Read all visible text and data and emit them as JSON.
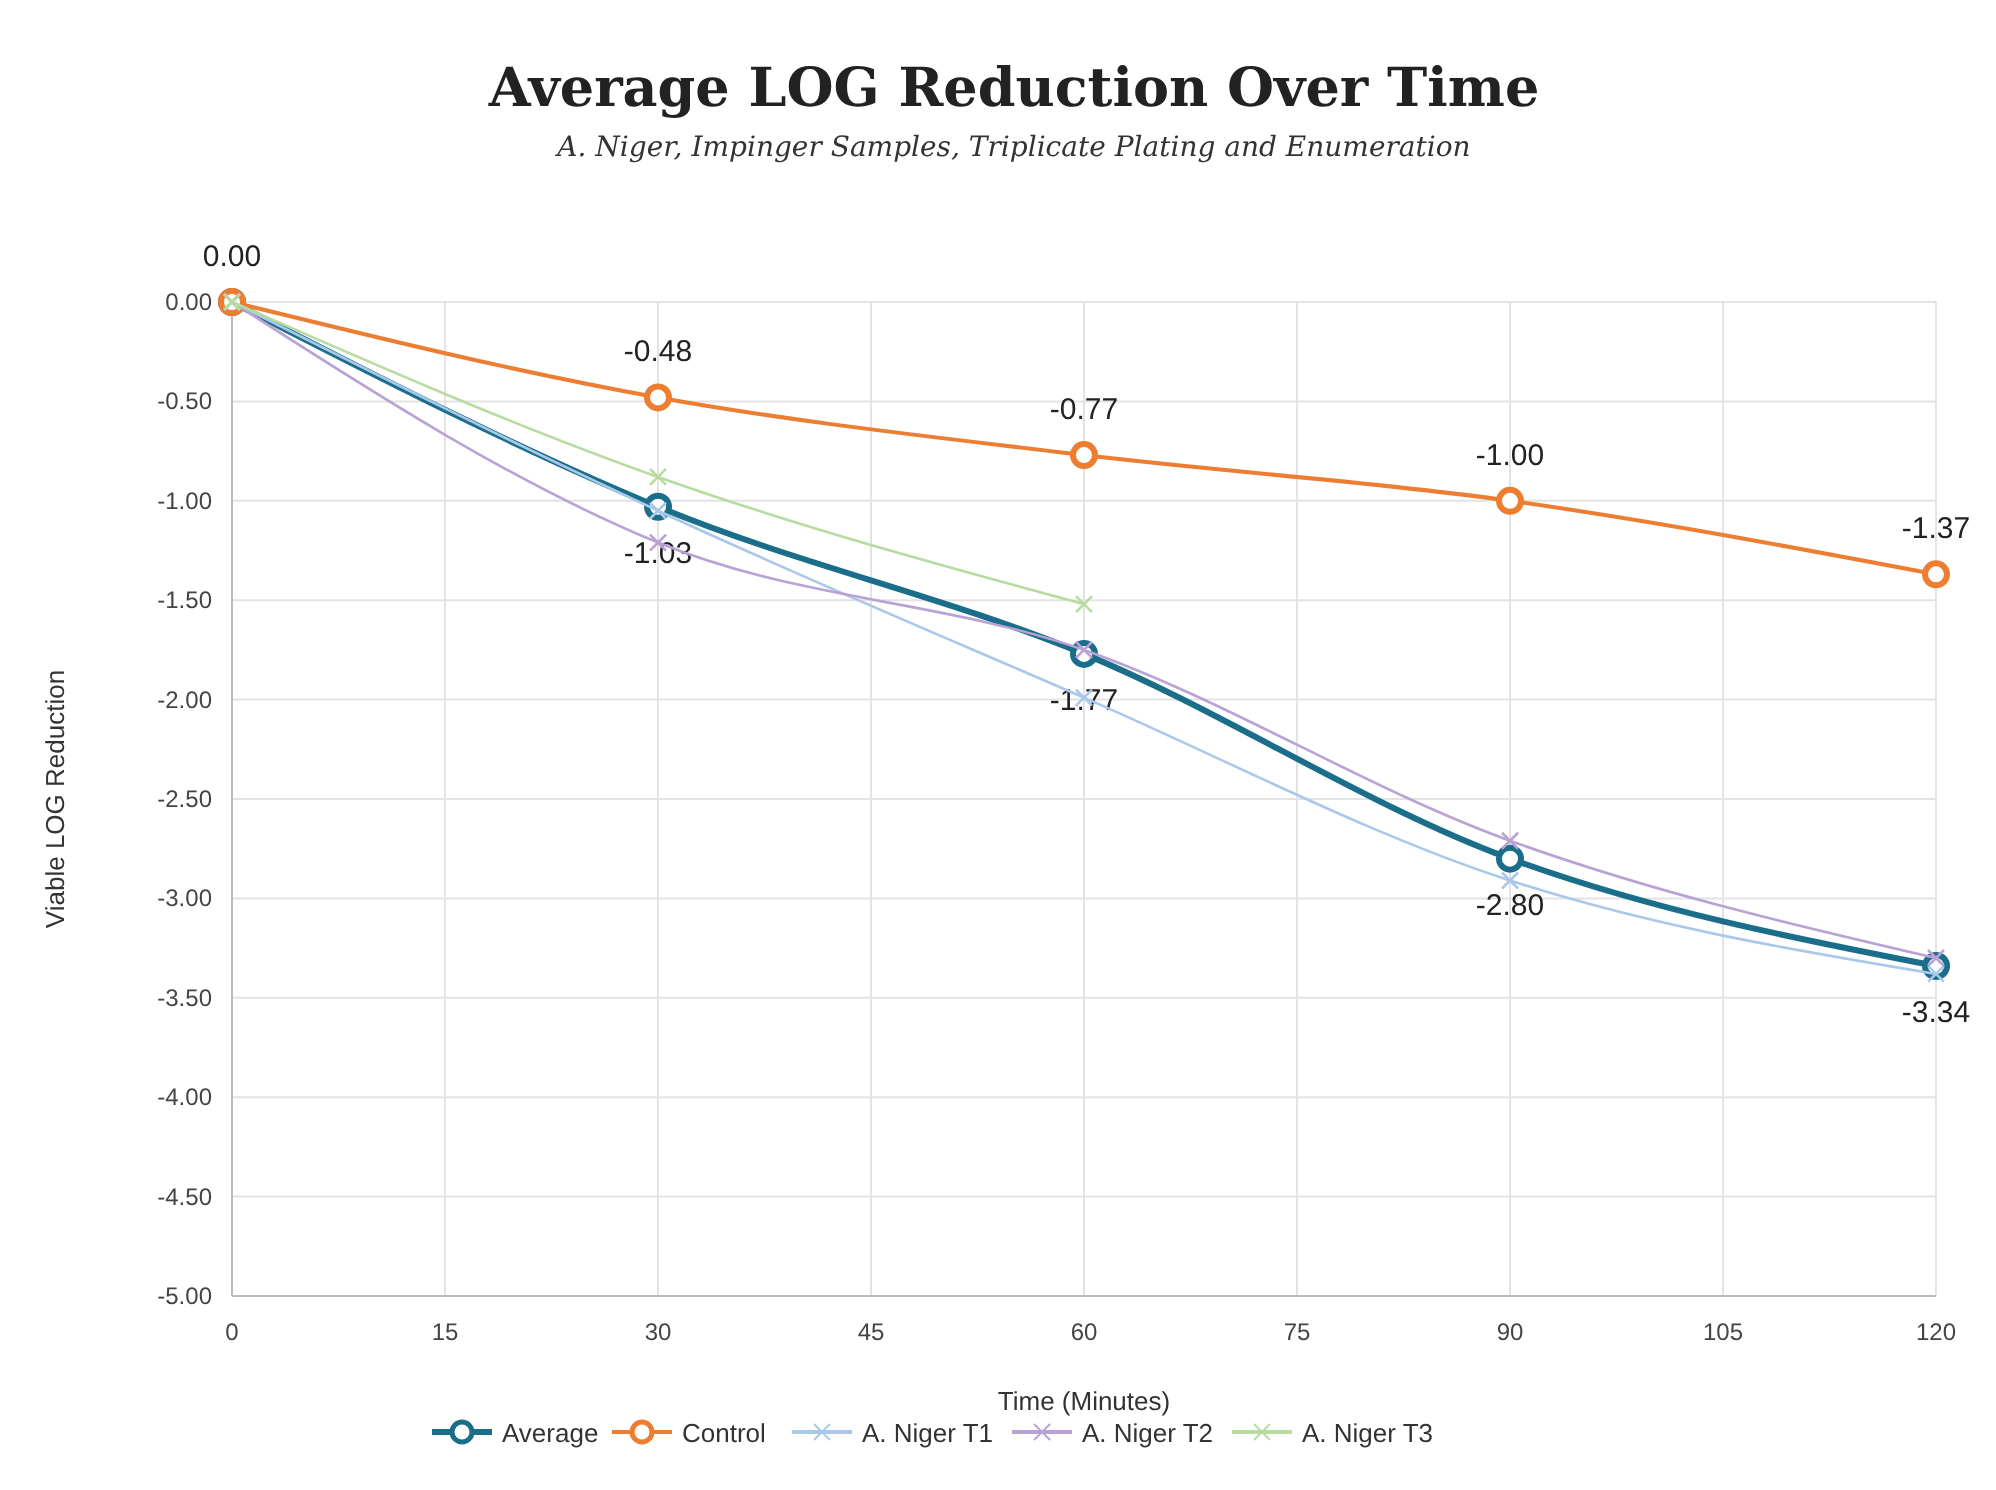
{
  "chart_data": {
    "type": "line",
    "title": "Average LOG Reduction Over Time",
    "subtitle": "A. Niger, Impinger Samples, Triplicate Plating and Enumeration",
    "xlabel": "Time (Minutes)",
    "ylabel": "Viable LOG Reduction",
    "x": [
      0,
      30,
      60,
      90,
      120
    ],
    "xlim": [
      0,
      120
    ],
    "xticks": [
      0,
      15,
      30,
      45,
      60,
      75,
      90,
      105,
      120
    ],
    "ylim": [
      -5,
      0
    ],
    "yticks": [
      {
        "value": 0,
        "label": "0.00"
      },
      {
        "value": -0.5,
        "label": "-0.50"
      },
      {
        "value": -1,
        "label": "-1.00"
      },
      {
        "value": -1.5,
        "label": "-1.50"
      },
      {
        "value": -2,
        "label": "-2.00"
      },
      {
        "value": -2.5,
        "label": "-2.50"
      },
      {
        "value": -3,
        "label": "-3.00"
      },
      {
        "value": -3.5,
        "label": "-3.50"
      },
      {
        "value": -4,
        "label": "-4.00"
      },
      {
        "value": -4.5,
        "label": "-4.50"
      },
      {
        "value": -5,
        "label": "-5.00"
      }
    ],
    "grid": true,
    "legend": "bottom",
    "line_style": "solid",
    "series": [
      {
        "name": "Average",
        "color": "#1a6e8a",
        "marker": "circle",
        "values": [
          0,
          -1.03,
          -1.77,
          -2.8,
          -3.34
        ],
        "value_labels": [
          null,
          "-1.03",
          "-1.77",
          "-2.80",
          "-3.34"
        ]
      },
      {
        "name": "Control",
        "color": "#ed7d31",
        "marker": "circle",
        "values": [
          0,
          -0.48,
          -0.77,
          -1.0,
          -1.37
        ],
        "value_labels": [
          "0.00",
          "-0.48",
          "-0.77",
          "-1.00",
          "-1.37"
        ]
      },
      {
        "name": "A. Niger T1",
        "color": "#a9c8ea",
        "marker": "cross",
        "values": [
          0,
          -1.05,
          -1.99,
          -2.91,
          -3.38
        ]
      },
      {
        "name": "A. Niger T2",
        "color": "#b9a3d6",
        "marker": "cross",
        "values": [
          0,
          -1.21,
          -1.75,
          -2.71,
          -3.3
        ]
      },
      {
        "name": "A. Niger T3",
        "color": "#b6dca0",
        "marker": "cross",
        "values": [
          0,
          -0.88,
          -1.52,
          null,
          null
        ]
      }
    ]
  }
}
